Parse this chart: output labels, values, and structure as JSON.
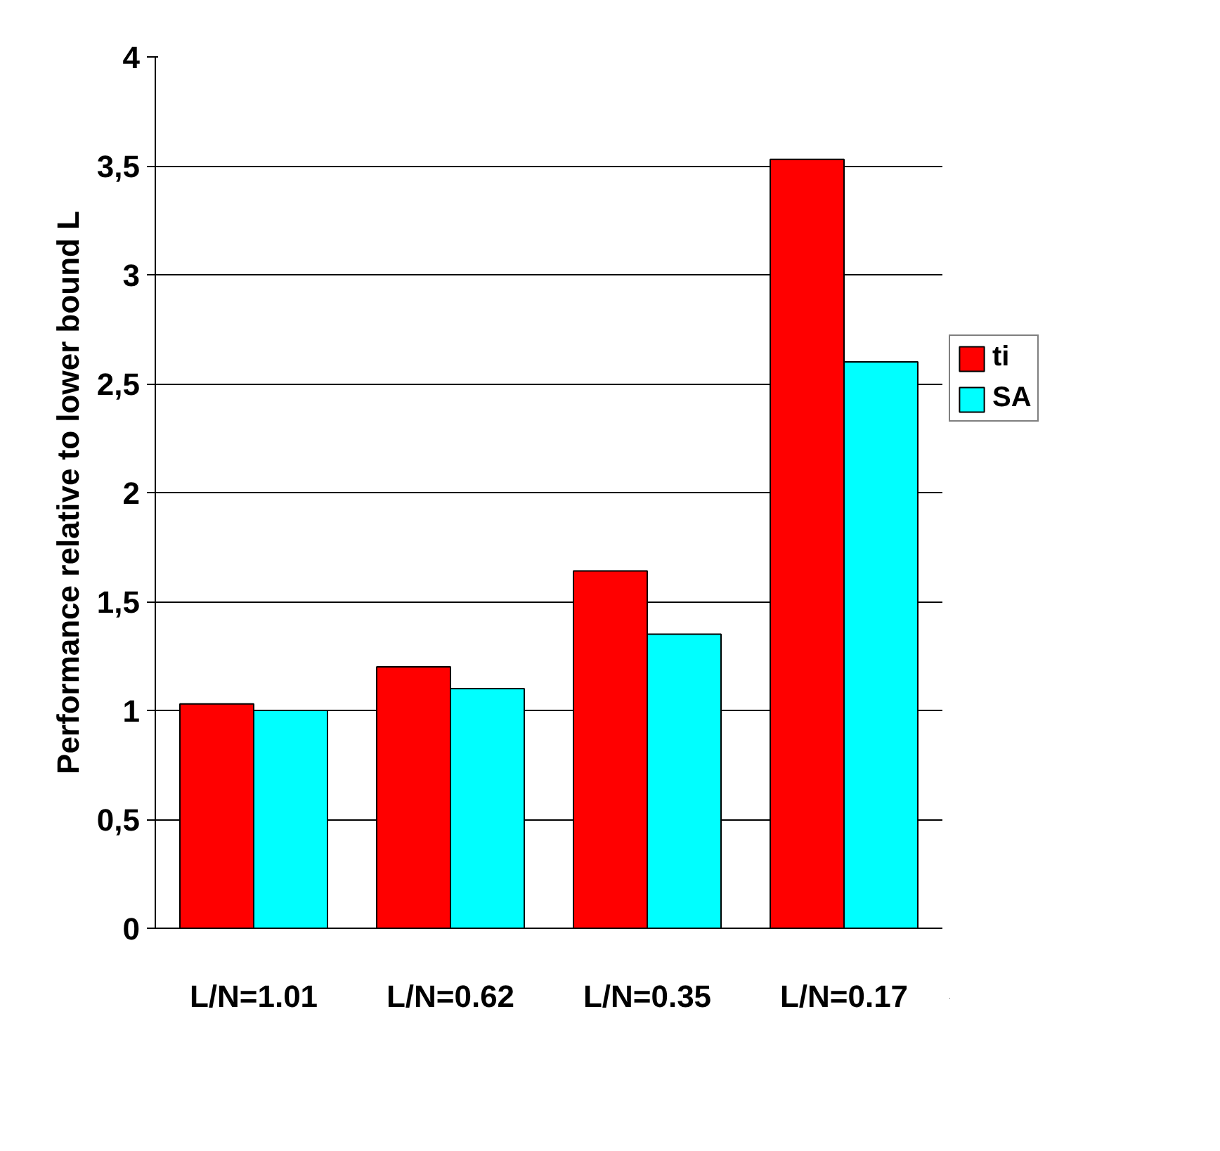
{
  "chart_data": {
    "type": "bar",
    "ylabel": "Performance relative to lower bound L",
    "categories": [
      "L/N=1.01",
      "L/N=0.62",
      "L/N=0.35",
      "L/N=0.17"
    ],
    "series": [
      {
        "name": "ti",
        "color": "#ff0000",
        "values": [
          1.03,
          1.2,
          1.64,
          3.53
        ]
      },
      {
        "name": "SA",
        "color": "#00ffff",
        "values": [
          1.0,
          1.1,
          1.35,
          2.6
        ]
      }
    ],
    "ylim": [
      0,
      4
    ],
    "yticks": [
      0,
      {
        "value": 0.5,
        "label": "0,5"
      },
      1,
      {
        "value": 1.5,
        "label": "1,5"
      },
      2,
      {
        "value": 2.5,
        "label": "2,5"
      },
      3,
      {
        "value": 3.5,
        "label": "3,5"
      },
      4
    ],
    "grid": "y",
    "legend": "right"
  }
}
